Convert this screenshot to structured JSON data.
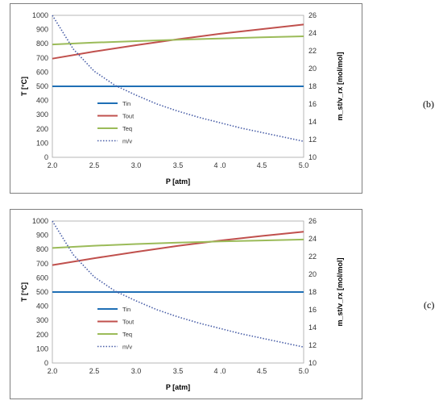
{
  "panels": [
    {
      "tag": "(b)"
    },
    {
      "tag": "(c)"
    }
  ],
  "chart_data": [
    {
      "type": "line",
      "xlabel": "P [atm]",
      "ylabel": "T [°C]",
      "y2label": "m_st/v_rx [mol/mol]",
      "x_tick_labels": [
        "2.0",
        "2.5",
        "3.0",
        "3.5",
        "4 .0",
        "4.5",
        "5.0"
      ],
      "xlim": [
        2.0,
        5.0
      ],
      "ylim": [
        0,
        1000
      ],
      "y2lim": [
        10,
        26
      ],
      "yticks": [
        0,
        100,
        200,
        300,
        400,
        500,
        600,
        700,
        800,
        900,
        1000
      ],
      "y2ticks": [
        10,
        12,
        14,
        16,
        18,
        20,
        22,
        24,
        26
      ],
      "grid": false,
      "legend": "center-left",
      "series": [
        {
          "name": "Tin",
          "axis": "left",
          "color": "#1f6fb5",
          "dash": "solid",
          "x": [
            2.0,
            5.0
          ],
          "y": [
            500,
            500
          ]
        },
        {
          "name": "Tout",
          "axis": "left",
          "color": "#c0504d",
          "dash": "solid",
          "x": [
            2.0,
            2.5,
            3.0,
            3.5,
            4.0,
            4.5,
            5.0
          ],
          "y": [
            695,
            745,
            790,
            832,
            870,
            903,
            935
          ]
        },
        {
          "name": "Teq",
          "axis": "left",
          "color": "#9bbb59",
          "dash": "solid",
          "x": [
            2.0,
            2.5,
            3.0,
            3.5,
            4.0,
            4.5,
            5.0
          ],
          "y": [
            795,
            808,
            818,
            828,
            837,
            845,
            852
          ]
        },
        {
          "name": "m/v",
          "axis": "right",
          "color": "#4a5fa8",
          "dash": "dotted",
          "x": [
            2.0,
            2.25,
            2.5,
            2.75,
            3.0,
            3.25,
            3.5,
            3.75,
            4.0,
            4.25,
            4.5,
            4.75,
            5.0
          ],
          "y": [
            26.0,
            22.2,
            19.7,
            18.1,
            17.0,
            16.0,
            15.2,
            14.5,
            13.9,
            13.3,
            12.8,
            12.3,
            11.8
          ]
        }
      ]
    },
    {
      "type": "line",
      "xlabel": "P [atm]",
      "ylabel": "T [°C]",
      "y2label": "m_st/v_rx [mol/mol]",
      "x_tick_labels": [
        "2.0",
        "2.5",
        "3.0",
        "3.5",
        "4 .0",
        "4.5",
        "5.0"
      ],
      "xlim": [
        2.0,
        5.0
      ],
      "ylim": [
        0,
        1000
      ],
      "y2lim": [
        10,
        26
      ],
      "yticks": [
        0,
        100,
        200,
        300,
        400,
        500,
        600,
        700,
        800,
        900,
        1000
      ],
      "y2ticks": [
        10,
        12,
        14,
        16,
        18,
        20,
        22,
        24,
        26
      ],
      "grid": false,
      "legend": "center-left",
      "series": [
        {
          "name": "Tin",
          "axis": "left",
          "color": "#1f6fb5",
          "dash": "solid",
          "x": [
            2.0,
            5.0
          ],
          "y": [
            500,
            500
          ]
        },
        {
          "name": "Tout",
          "axis": "left",
          "color": "#c0504d",
          "dash": "solid",
          "x": [
            2.0,
            2.5,
            3.0,
            3.5,
            4.0,
            4.5,
            5.0
          ],
          "y": [
            690,
            738,
            783,
            825,
            862,
            895,
            925
          ]
        },
        {
          "name": "Teq",
          "axis": "left",
          "color": "#9bbb59",
          "dash": "solid",
          "x": [
            2.0,
            2.5,
            3.0,
            3.5,
            4.0,
            4.5,
            5.0
          ],
          "y": [
            810,
            826,
            838,
            848,
            856,
            863,
            870
          ]
        },
        {
          "name": "m/v",
          "axis": "right",
          "color": "#4a5fa8",
          "dash": "dotted",
          "x": [
            2.0,
            2.25,
            2.5,
            2.75,
            3.0,
            3.25,
            3.5,
            3.75,
            4.0,
            4.25,
            4.5,
            4.75,
            5.0
          ],
          "y": [
            26.0,
            22.2,
            19.7,
            18.1,
            17.0,
            16.0,
            15.2,
            14.5,
            13.9,
            13.3,
            12.8,
            12.3,
            11.8
          ]
        }
      ]
    }
  ]
}
